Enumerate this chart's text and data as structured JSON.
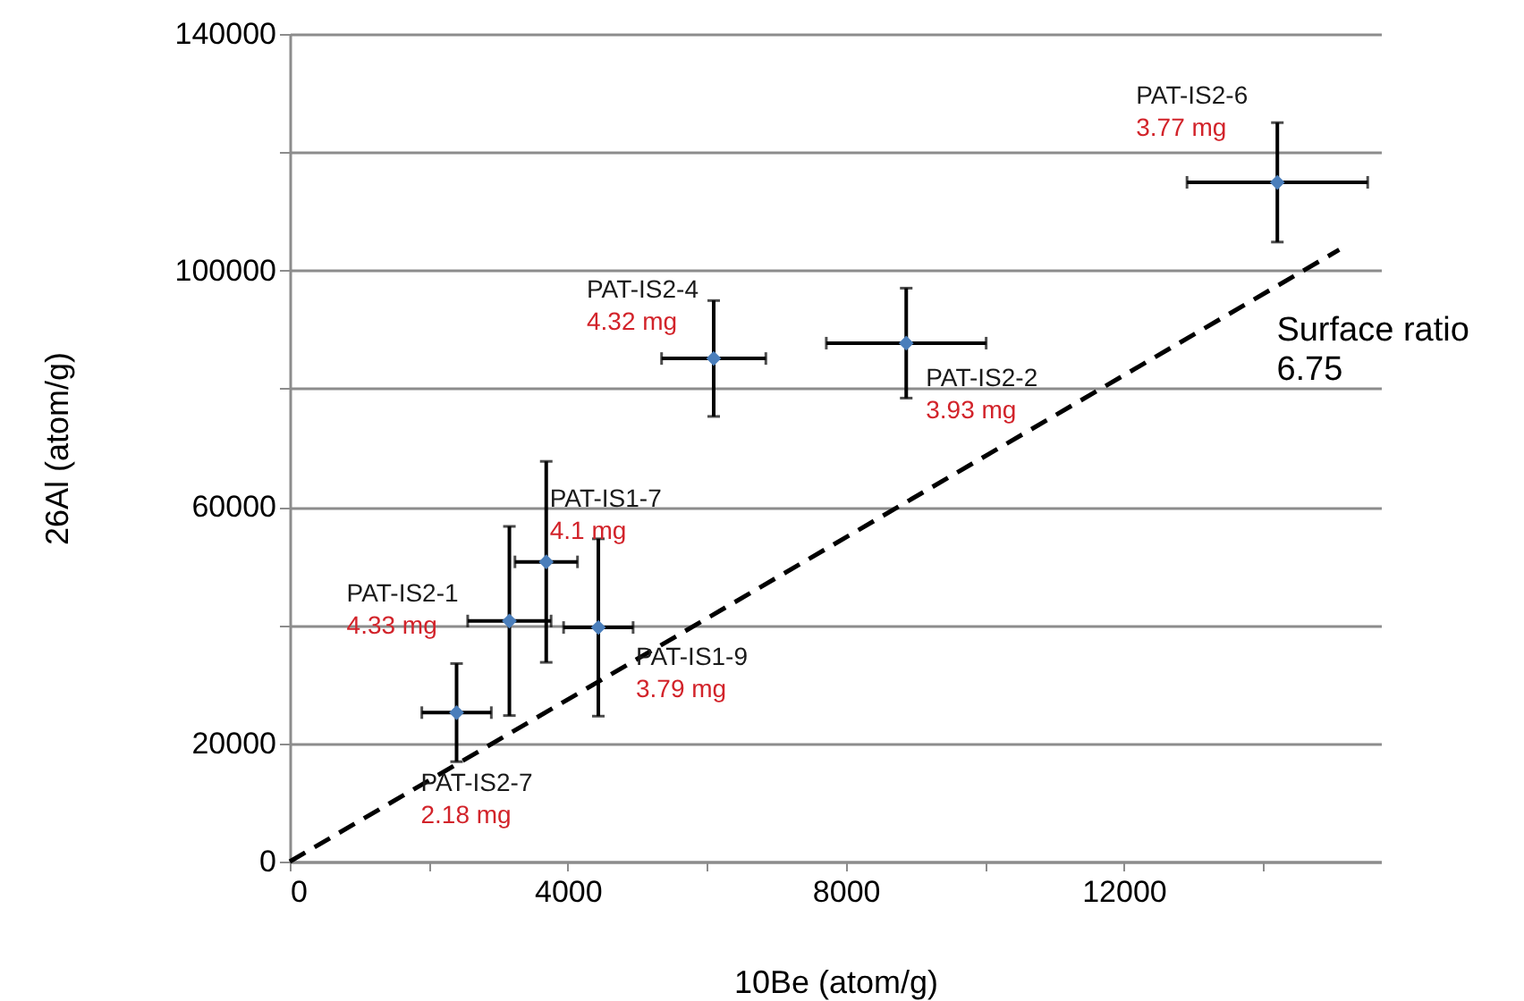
{
  "chart_data": {
    "type": "scatter",
    "xlabel": "10Be (atom/g)",
    "ylabel": "26Al (atom/g)",
    "xlim": [
      0,
      15700
    ],
    "ylim": [
      0,
      140000
    ],
    "xticks": [
      0,
      {
        "value": 2000,
        "label": null
      },
      4000,
      {
        "value": 6000,
        "label": null
      },
      8000,
      {
        "value": 10000,
        "label": null
      },
      12000,
      {
        "value": 14000,
        "label": null
      }
    ],
    "yticks": [
      0,
      20000,
      {
        "value": 40000,
        "label": null
      },
      60000,
      {
        "value": 80000,
        "label": null
      },
      100000,
      {
        "value": 120000,
        "label": null
      },
      140000
    ],
    "grid": "y",
    "series": [
      {
        "color": "#4a7ebb",
        "marker": "diamond",
        "x": [
          2400,
          3160,
          3690,
          4440,
          6100,
          8870,
          14210
        ],
        "values": [
          25200,
          40700,
          50700,
          39600,
          85100,
          87700,
          114900
        ],
        "errors": [
          8300,
          16000,
          17000,
          15000,
          9800,
          9300,
          10100
        ],
        "xerrors": [
          500,
          600,
          450,
          500,
          750,
          1150,
          1300
        ]
      },
      {
        "type": "line",
        "name": "Surface ratio\n6.75",
        "color": "#000000",
        "line_style": "dashed",
        "marker": "none",
        "x": [
          0,
          15100
        ],
        "values": [
          0,
          103500
        ]
      }
    ],
    "annotations": [
      {
        "text": "PAT-IS2-7\n2.18 mg",
        "x": 2400,
        "y": 25200
      },
      {
        "text": "PAT-IS2-1\n4.33 mg",
        "x": 3160,
        "y": 40700
      },
      {
        "text": "PAT-IS1-7\n4.1 mg",
        "x": 3690,
        "y": 50700
      },
      {
        "text": "PAT-IS1-9\n3.79 mg",
        "x": 4440,
        "y": 39600
      },
      {
        "text": "PAT-IS2-4\n4.32 mg",
        "x": 6100,
        "y": 85100
      },
      {
        "text": "PAT-IS2-2\n3.93 mg",
        "x": 8870,
        "y": 87700
      },
      {
        "text": "PAT-IS2-6\n3.77 mg",
        "x": 14210,
        "y": 114900
      }
    ]
  }
}
